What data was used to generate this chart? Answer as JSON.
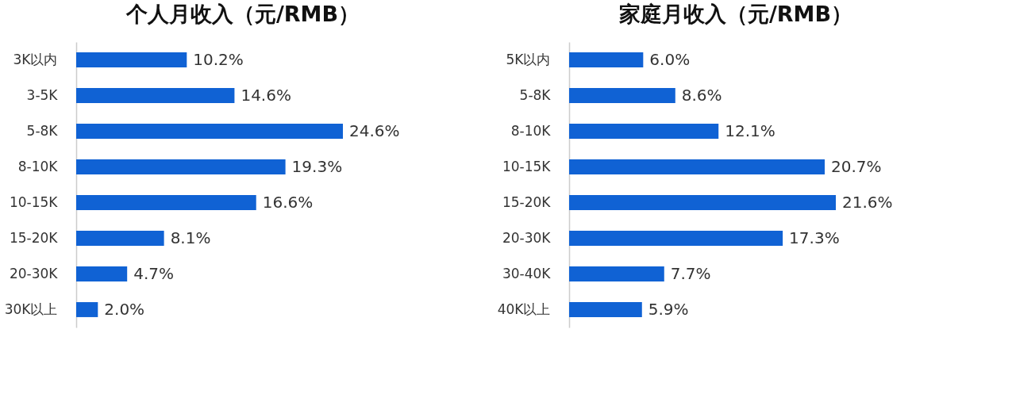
{
  "chart_data": [
    {
      "type": "bar",
      "orientation": "horizontal",
      "title": "个人月收入（元/RMB）",
      "categories": [
        "3K以内",
        "3-5K",
        "5-8K",
        "8-10K",
        "10-15K",
        "15-20K",
        "20-30K",
        "30K以上"
      ],
      "value_labels": [
        "10.2%",
        "14.6%",
        "24.6%",
        "19.3%",
        "16.6%",
        "8.1%",
        "4.7%",
        "2.0%"
      ],
      "values": [
        10.2,
        14.6,
        24.6,
        19.3,
        16.6,
        8.1,
        4.7,
        2.0
      ],
      "color": "#1062d4",
      "grid": false
    },
    {
      "type": "bar",
      "orientation": "horizontal",
      "title": "家庭月收入（元/RMB）",
      "categories": [
        "5K以内",
        "5-8K",
        "8-10K",
        "10-15K",
        "15-20K",
        "20-30K",
        "30-40K",
        "40K以上"
      ],
      "value_labels": [
        "6.0%",
        "8.6%",
        "12.1%",
        "20.7%",
        "21.6%",
        "17.3%",
        "7.7%",
        "5.9%"
      ],
      "values": [
        6.0,
        8.6,
        12.1,
        20.7,
        21.6,
        17.3,
        7.7,
        5.9
      ],
      "color": "#1062d4",
      "grid": false
    }
  ]
}
